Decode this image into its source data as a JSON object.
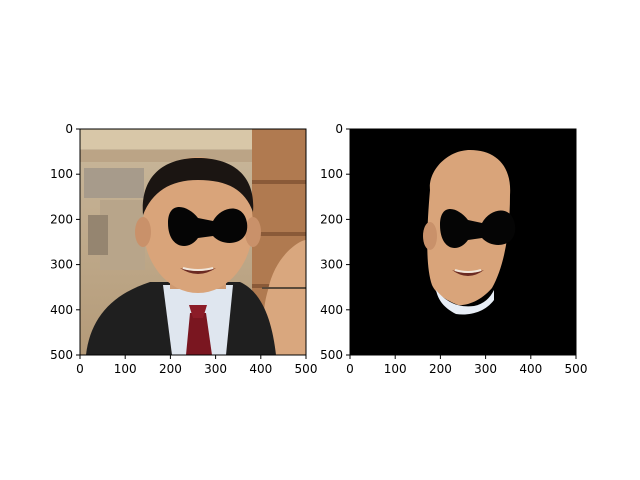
{
  "chart_data": [
    {
      "type": "image",
      "content": "photo of a man in a dark suit and red tie; eye region masked with a black shape",
      "xlim": [
        0,
        500
      ],
      "ylim": [
        500,
        0
      ],
      "xticks": [
        "0",
        "100",
        "200",
        "300",
        "400",
        "500"
      ],
      "yticks": [
        "0",
        "100",
        "200",
        "300",
        "400",
        "500"
      ]
    },
    {
      "type": "image",
      "content": "face segmentation of the same photo on black background; eye region masked",
      "xlim": [
        0,
        500
      ],
      "ylim": [
        500,
        0
      ],
      "xticks": [
        "0",
        "100",
        "200",
        "300",
        "400",
        "500"
      ],
      "yticks": [
        "0",
        "100",
        "200",
        "300",
        "400",
        "500"
      ]
    }
  ]
}
